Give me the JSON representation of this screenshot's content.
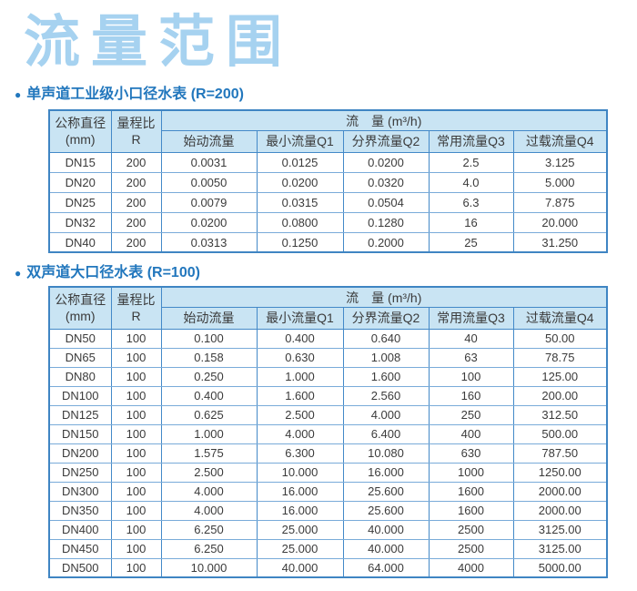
{
  "page": {
    "title": "流量范围"
  },
  "colors": {
    "title_blue": "#a6d2f0",
    "heading_blue": "#2277bd",
    "table_border_blue": "#3f85c3",
    "grid_dark_blue": "#4389c8",
    "grid_light_blue": "#79abd9",
    "header_fill": "#c9e4f3",
    "body_text": "#3b3b3b",
    "background": "#ffffff"
  },
  "sections": [
    {
      "bullet": "●",
      "heading": "单声道工业级小口径水表 (R=200)"
    },
    {
      "bullet": "●",
      "heading": "双声道大口径水表 (R=100)"
    }
  ],
  "table_header": {
    "diameter_line1": "公称直径",
    "diameter_line2": "(mm)",
    "ratio_line1": "量程比",
    "ratio_line2": "R",
    "flow_group": "流　量 (m³/h)",
    "sub_columns": [
      "始动流量",
      "最小流量Q1",
      "分界流量Q2",
      "常用流量Q3",
      "过载流量Q4"
    ]
  },
  "tables": [
    {
      "name": "single-channel-small-diameter",
      "rows": [
        [
          "DN15",
          "200",
          "0.0031",
          "0.0125",
          "0.0200",
          "2.5",
          "3.125"
        ],
        [
          "DN20",
          "200",
          "0.0050",
          "0.0200",
          "0.0320",
          "4.0",
          "5.000"
        ],
        [
          "DN25",
          "200",
          "0.0079",
          "0.0315",
          "0.0504",
          "6.3",
          "7.875"
        ],
        [
          "DN32",
          "200",
          "0.0200",
          "0.0800",
          "0.1280",
          "16",
          "20.000"
        ],
        [
          "DN40",
          "200",
          "0.0313",
          "0.1250",
          "0.2000",
          "25",
          "31.250"
        ]
      ]
    },
    {
      "name": "dual-channel-large-diameter",
      "rows": [
        [
          "DN50",
          "100",
          "0.100",
          "0.400",
          "0.640",
          "40",
          "50.00"
        ],
        [
          "DN65",
          "100",
          "0.158",
          "0.630",
          "1.008",
          "63",
          "78.75"
        ],
        [
          "DN80",
          "100",
          "0.250",
          "1.000",
          "1.600",
          "100",
          "125.00"
        ],
        [
          "DN100",
          "100",
          "0.400",
          "1.600",
          "2.560",
          "160",
          "200.00"
        ],
        [
          "DN125",
          "100",
          "0.625",
          "2.500",
          "4.000",
          "250",
          "312.50"
        ],
        [
          "DN150",
          "100",
          "1.000",
          "4.000",
          "6.400",
          "400",
          "500.00"
        ],
        [
          "DN200",
          "100",
          "1.575",
          "6.300",
          "10.080",
          "630",
          "787.50"
        ],
        [
          "DN250",
          "100",
          "2.500",
          "10.000",
          "16.000",
          "1000",
          "1250.00"
        ],
        [
          "DN300",
          "100",
          "4.000",
          "16.000",
          "25.600",
          "1600",
          "2000.00"
        ],
        [
          "DN350",
          "100",
          "4.000",
          "16.000",
          "25.600",
          "1600",
          "2000.00"
        ],
        [
          "DN400",
          "100",
          "6.250",
          "25.000",
          "40.000",
          "2500",
          "3125.00"
        ],
        [
          "DN450",
          "100",
          "6.250",
          "25.000",
          "40.000",
          "2500",
          "3125.00"
        ],
        [
          "DN500",
          "100",
          "10.000",
          "40.000",
          "64.000",
          "4000",
          "5000.00"
        ]
      ]
    }
  ]
}
